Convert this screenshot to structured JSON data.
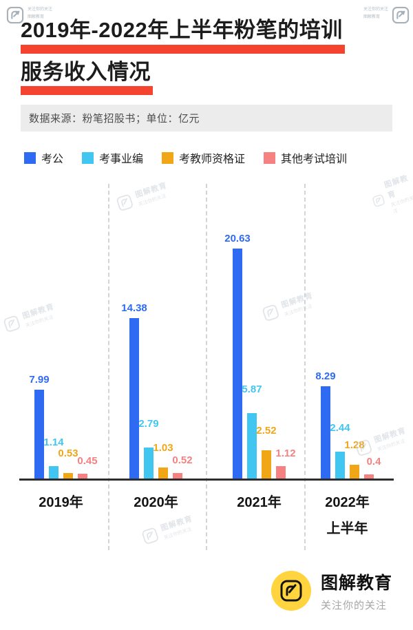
{
  "header": {
    "title_line1": "2019年-2022年上半年粉笔的培训",
    "title_line2": "服务收入情况",
    "source_note": "数据来源：粉笔招股书；单位：亿元"
  },
  "chart_data": {
    "type": "bar",
    "title": "2019年-2022年上半年粉笔的培训服务收入情况",
    "unit": "亿元",
    "source": "粉笔招股书",
    "categories": [
      {
        "label": "2019年",
        "sublabel": ""
      },
      {
        "label": "2020年",
        "sublabel": ""
      },
      {
        "label": "2021年",
        "sublabel": ""
      },
      {
        "label": "2022年",
        "sublabel": "上半年"
      }
    ],
    "series": [
      {
        "name": "考公",
        "color": "#2e6bf2",
        "values": [
          7.99,
          14.38,
          20.63,
          8.29
        ]
      },
      {
        "name": "考事业编",
        "color": "#41c6f2",
        "values": [
          1.14,
          2.79,
          5.87,
          2.44
        ]
      },
      {
        "name": "考教师资格证",
        "color": "#f0a617",
        "values": [
          0.53,
          1.03,
          2.52,
          1.28
        ]
      },
      {
        "name": "其他考试培训",
        "color": "#f58181",
        "values": [
          0.45,
          0.52,
          1.12,
          0.4
        ]
      }
    ],
    "ylim": [
      0,
      21
    ],
    "value_labels": true,
    "legend_position": "top",
    "grid": false
  },
  "footer": {
    "brand": "图解教育",
    "slogan": "关注你的关注"
  },
  "watermark": {
    "text": "图解教育",
    "subtext": "关注你的关注"
  },
  "colors": {
    "accent_red": "#f4432e",
    "logo_yellow": "#ffd43e",
    "axis": "#2e2e2e"
  }
}
